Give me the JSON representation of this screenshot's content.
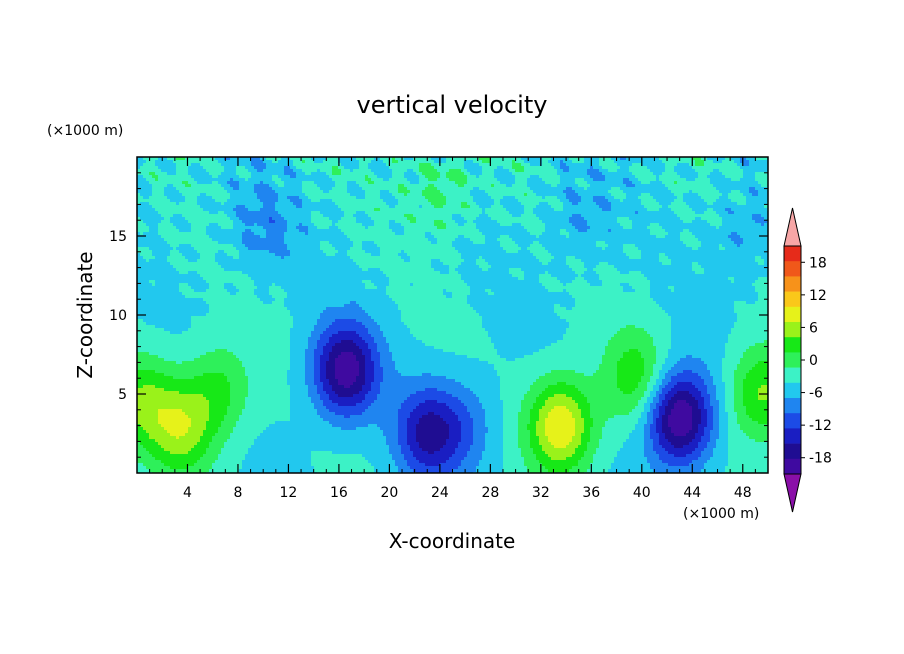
{
  "chart_data": {
    "type": "heatmap",
    "title": "vertical velocity",
    "xlabel": "X-coordinate",
    "ylabel": "Z-coordinate",
    "x_unit": "(×1000 m)",
    "y_unit": "(×1000 m)",
    "xlim": [
      0,
      50
    ],
    "ylim": [
      0,
      20
    ],
    "x_ticks": [
      4,
      8,
      12,
      16,
      20,
      24,
      28,
      32,
      36,
      40,
      44,
      48
    ],
    "y_ticks": [
      5,
      10,
      15
    ],
    "colorbar": {
      "ticks": [
        18,
        12,
        6,
        0,
        -6,
        -12,
        -18
      ],
      "range": [
        -21,
        21
      ],
      "levels": [
        -18,
        -15,
        -12,
        -9,
        -6,
        -3,
        0,
        3,
        6,
        9,
        12,
        15,
        18
      ],
      "colors": [
        "#8a0fa8",
        "#3f0aa0",
        "#1f0d92",
        "#1a1ec2",
        "#1c4be6",
        "#1f85f0",
        "#22c8ee",
        "#3cf2c6",
        "#2ef05a",
        "#17e817",
        "#9af21a",
        "#e6f21a",
        "#fac81a",
        "#f7921a",
        "#f0581a",
        "#e62b1a",
        "#f7a6a6"
      ]
    },
    "features": [
      {
        "x": 16.5,
        "z": 6.5,
        "value": -17
      },
      {
        "x": 43.0,
        "z": 3.5,
        "value": -19
      },
      {
        "x": 23.0,
        "z": 2.5,
        "value": -12
      },
      {
        "x": 33.6,
        "z": 3.0,
        "value": 15
      },
      {
        "x": 3.5,
        "z": 2.8,
        "value": 10
      },
      {
        "x": 6.5,
        "z": 5.2,
        "value": 7
      },
      {
        "x": 49.5,
        "z": 5.0,
        "value": 10
      },
      {
        "x": 39.5,
        "z": 6.0,
        "value": 8
      },
      {
        "x": 0.3,
        "z": 4.5,
        "value": 8
      },
      {
        "x": 26.0,
        "z": 3.0,
        "value": -5
      },
      {
        "x": 10.0,
        "z": 15.5,
        "value": -4
      },
      {
        "x": 35.0,
        "z": 16.0,
        "value": -3
      },
      {
        "x": 24.0,
        "z": 18.0,
        "value": 4
      },
      {
        "x": 48.0,
        "z": 15.0,
        "value": -3
      }
    ]
  }
}
